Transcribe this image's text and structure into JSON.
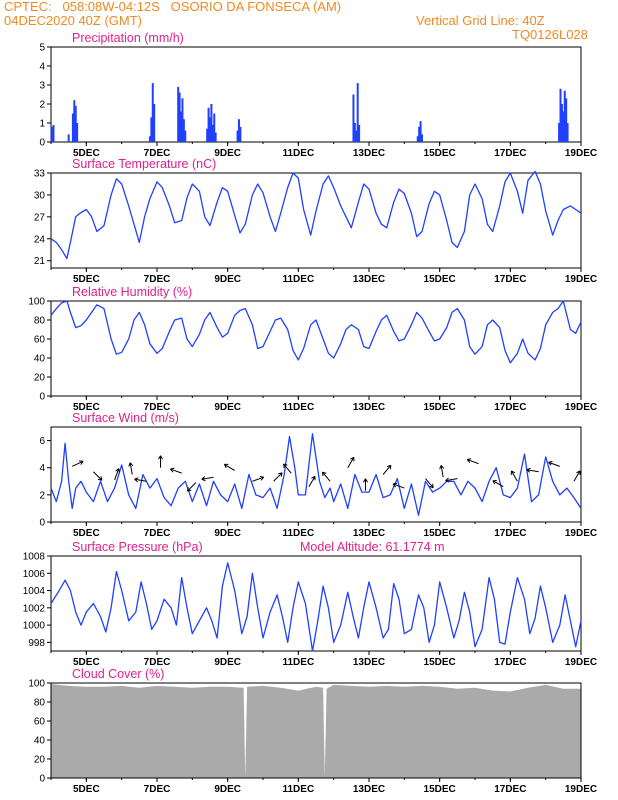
{
  "header": {
    "line1_left": "CPTEC:   058:08W-04:12S   OSORIO DA FONSECA (AM)",
    "line2_left": "04DEC2020 40Z (GMT)",
    "line2_right": "Vertical Grid Line: 40Z",
    "line3_right": "TQ0126L028"
  },
  "colors": {
    "header": "#f08a24",
    "titles": "#e0208c",
    "series": "#2040ff",
    "cloud": "#aaaaaa"
  },
  "x_tick_labels": [
    "5DEC",
    "7DEC",
    "9DEC",
    "11DEC",
    "13DEC",
    "15DEC",
    "17DEC",
    "19DEC"
  ],
  "chart_data": [
    {
      "type": "bar",
      "title": "Precipitation (mm/h)",
      "ylim": [
        0,
        5
      ],
      "yticks": [
        "0",
        "1",
        "2",
        "3",
        "4",
        "5"
      ],
      "x_range_days": [
        4.0,
        19.0
      ],
      "events": [
        {
          "day": 4.02,
          "value": 0.8
        },
        {
          "day": 4.07,
          "value": 0.9
        },
        {
          "day": 4.5,
          "value": 0.4
        },
        {
          "day": 4.62,
          "value": 1.5
        },
        {
          "day": 4.66,
          "value": 2.2
        },
        {
          "day": 4.7,
          "value": 1.9
        },
        {
          "day": 4.74,
          "value": 1.0
        },
        {
          "day": 6.8,
          "value": 0.3
        },
        {
          "day": 6.84,
          "value": 1.3
        },
        {
          "day": 6.88,
          "value": 3.1
        },
        {
          "day": 6.92,
          "value": 2.0
        },
        {
          "day": 7.6,
          "value": 2.9
        },
        {
          "day": 7.64,
          "value": 2.6
        },
        {
          "day": 7.68,
          "value": 1.6
        },
        {
          "day": 7.72,
          "value": 2.3
        },
        {
          "day": 7.76,
          "value": 1.2
        },
        {
          "day": 7.8,
          "value": 0.6
        },
        {
          "day": 8.42,
          "value": 0.7
        },
        {
          "day": 8.46,
          "value": 1.8
        },
        {
          "day": 8.5,
          "value": 1.3
        },
        {
          "day": 8.54,
          "value": 2.0
        },
        {
          "day": 8.58,
          "value": 0.9
        },
        {
          "day": 8.62,
          "value": 1.5
        },
        {
          "day": 8.66,
          "value": 0.5
        },
        {
          "day": 9.28,
          "value": 0.6
        },
        {
          "day": 9.32,
          "value": 1.2
        },
        {
          "day": 9.36,
          "value": 0.8
        },
        {
          "day": 12.56,
          "value": 2.5
        },
        {
          "day": 12.6,
          "value": 1.0
        },
        {
          "day": 12.64,
          "value": 0.6
        },
        {
          "day": 12.68,
          "value": 3.1
        },
        {
          "day": 12.72,
          "value": 0.9
        },
        {
          "day": 14.38,
          "value": 0.3
        },
        {
          "day": 14.42,
          "value": 0.8
        },
        {
          "day": 14.46,
          "value": 1.1
        },
        {
          "day": 14.5,
          "value": 0.4
        },
        {
          "day": 18.38,
          "value": 1.0
        },
        {
          "day": 18.42,
          "value": 2.8
        },
        {
          "day": 18.46,
          "value": 2.0
        },
        {
          "day": 18.5,
          "value": 1.6
        },
        {
          "day": 18.54,
          "value": 2.7
        },
        {
          "day": 18.58,
          "value": 2.3
        },
        {
          "day": 18.62,
          "value": 1.0
        }
      ]
    },
    {
      "type": "line",
      "title": "Surface Temperature (nC)",
      "ylim": [
        20,
        33
      ],
      "yticks": [
        "21",
        "24",
        "27",
        "30",
        "33"
      ],
      "x_range_days": [
        4.0,
        19.0
      ],
      "x": [
        4.0,
        4.15,
        4.3,
        4.45,
        4.55,
        4.7,
        4.85,
        5.0,
        5.15,
        5.3,
        5.5,
        5.7,
        5.85,
        6.0,
        6.2,
        6.35,
        6.5,
        6.65,
        6.8,
        7.0,
        7.15,
        7.35,
        7.5,
        7.7,
        7.85,
        8.0,
        8.2,
        8.35,
        8.5,
        8.7,
        8.85,
        9.0,
        9.2,
        9.35,
        9.5,
        9.7,
        9.85,
        10.0,
        10.2,
        10.35,
        10.5,
        10.7,
        10.85,
        11.0,
        11.15,
        11.35,
        11.5,
        11.7,
        11.85,
        12.0,
        12.2,
        12.35,
        12.5,
        12.7,
        12.85,
        13.0,
        13.2,
        13.35,
        13.5,
        13.7,
        13.85,
        14.0,
        14.2,
        14.35,
        14.5,
        14.7,
        14.85,
        15.0,
        15.2,
        15.35,
        15.5,
        15.7,
        15.85,
        16.0,
        16.2,
        16.35,
        16.5,
        16.7,
        16.85,
        17.0,
        17.2,
        17.35,
        17.5,
        17.7,
        17.85,
        18.0,
        18.2,
        18.35,
        18.5,
        18.7,
        18.85,
        19.0
      ],
      "values": [
        24.0,
        23.5,
        22.5,
        21.3,
        23.5,
        27.0,
        27.6,
        28.0,
        27.0,
        25.0,
        25.8,
        30.0,
        32.2,
        31.5,
        28.5,
        26.0,
        23.5,
        27.0,
        29.5,
        31.8,
        31.0,
        28.5,
        26.2,
        26.5,
        29.6,
        31.5,
        30.5,
        27.0,
        25.8,
        29.0,
        31.0,
        30.5,
        27.2,
        24.8,
        26.0,
        30.0,
        31.5,
        30.3,
        27.0,
        25.0,
        27.5,
        31.0,
        33.0,
        32.3,
        28.0,
        24.5,
        27.8,
        31.5,
        32.6,
        31.0,
        28.5,
        27.0,
        25.5,
        29.0,
        31.5,
        30.8,
        27.5,
        26.0,
        25.5,
        29.0,
        30.8,
        30.2,
        27.5,
        24.3,
        25.0,
        28.8,
        30.5,
        30.0,
        26.5,
        23.5,
        22.8,
        25.0,
        30.0,
        31.5,
        29.5,
        26.0,
        25.0,
        28.5,
        31.8,
        33.0,
        30.5,
        27.5,
        32.0,
        33.2,
        31.5,
        27.8,
        24.5,
        26.5,
        28.0,
        28.5,
        28.0,
        27.5
      ]
    },
    {
      "type": "line",
      "title": "Relative Humidity (%)",
      "ylim": [
        0,
        100
      ],
      "yticks": [
        "0",
        "20",
        "40",
        "60",
        "80",
        "100"
      ],
      "x_range_days": [
        4.0,
        19.0
      ],
      "x": [
        4.0,
        4.15,
        4.3,
        4.45,
        4.55,
        4.7,
        4.85,
        5.0,
        5.15,
        5.3,
        5.5,
        5.7,
        5.85,
        6.0,
        6.2,
        6.35,
        6.5,
        6.65,
        6.8,
        7.0,
        7.15,
        7.35,
        7.5,
        7.7,
        7.85,
        8.0,
        8.2,
        8.35,
        8.5,
        8.7,
        8.85,
        9.0,
        9.2,
        9.35,
        9.5,
        9.7,
        9.85,
        10.0,
        10.2,
        10.35,
        10.5,
        10.7,
        10.85,
        11.0,
        11.15,
        11.35,
        11.5,
        11.7,
        11.85,
        12.0,
        12.2,
        12.35,
        12.5,
        12.7,
        12.85,
        13.0,
        13.2,
        13.35,
        13.5,
        13.7,
        13.85,
        14.0,
        14.2,
        14.35,
        14.5,
        14.7,
        14.85,
        15.0,
        15.2,
        15.35,
        15.5,
        15.7,
        15.85,
        16.0,
        16.2,
        16.35,
        16.5,
        16.7,
        16.85,
        17.0,
        17.2,
        17.35,
        17.5,
        17.7,
        17.85,
        18.0,
        18.2,
        18.35,
        18.5,
        18.7,
        18.85,
        19.0
      ],
      "values": [
        85,
        92,
        98,
        100,
        88,
        72,
        74,
        80,
        88,
        96,
        92,
        60,
        44,
        46,
        60,
        80,
        88,
        75,
        55,
        45,
        50,
        68,
        80,
        82,
        60,
        52,
        65,
        80,
        88,
        72,
        62,
        66,
        85,
        90,
        92,
        75,
        50,
        52,
        68,
        80,
        82,
        70,
        48,
        38,
        50,
        75,
        80,
        60,
        45,
        40,
        55,
        70,
        75,
        70,
        52,
        50,
        68,
        80,
        85,
        68,
        58,
        60,
        75,
        88,
        82,
        68,
        58,
        60,
        72,
        88,
        92,
        80,
        52,
        44,
        52,
        75,
        80,
        72,
        48,
        35,
        45,
        60,
        45,
        38,
        50,
        75,
        88,
        92,
        100,
        70,
        66,
        78
      ]
    },
    {
      "type": "line",
      "title": "Surface Wind (m/s)",
      "ylim": [
        0,
        7
      ],
      "yticks": [
        "0",
        "2",
        "4",
        "6"
      ],
      "x_range_days": [
        4.0,
        19.0
      ],
      "x": [
        4.0,
        4.15,
        4.3,
        4.4,
        4.5,
        4.6,
        4.7,
        4.85,
        5.0,
        5.2,
        5.4,
        5.6,
        5.8,
        6.0,
        6.2,
        6.4,
        6.6,
        6.8,
        7.0,
        7.2,
        7.4,
        7.6,
        7.8,
        8.0,
        8.2,
        8.4,
        8.6,
        8.8,
        9.0,
        9.2,
        9.4,
        9.6,
        9.8,
        10.0,
        10.2,
        10.4,
        10.6,
        10.75,
        10.9,
        11.0,
        11.2,
        11.4,
        11.6,
        11.75,
        11.9,
        12.0,
        12.2,
        12.4,
        12.6,
        12.8,
        13.0,
        13.2,
        13.4,
        13.6,
        13.8,
        14.0,
        14.2,
        14.4,
        14.6,
        14.8,
        15.0,
        15.2,
        15.4,
        15.6,
        15.8,
        16.0,
        16.2,
        16.4,
        16.6,
        16.8,
        17.0,
        17.2,
        17.4,
        17.6,
        17.8,
        18.0,
        18.2,
        18.4,
        18.6,
        18.8,
        19.0
      ],
      "values": [
        2.5,
        1.5,
        3.0,
        5.8,
        3.0,
        1.0,
        2.5,
        3.0,
        2.2,
        1.5,
        3.0,
        1.5,
        2.5,
        4.2,
        2.0,
        1.0,
        3.5,
        2.5,
        3.2,
        1.8,
        1.2,
        2.5,
        3.0,
        1.5,
        2.8,
        1.2,
        3.0,
        2.0,
        1.5,
        2.8,
        1.0,
        3.5,
        2.0,
        1.8,
        2.5,
        1.0,
        3.5,
        6.3,
        4.0,
        2.0,
        2.0,
        6.5,
        3.0,
        1.8,
        2.5,
        1.5,
        2.8,
        1.0,
        3.5,
        2.2,
        2.2,
        3.5,
        1.8,
        2.0,
        3.2,
        1.0,
        2.8,
        0.5,
        3.0,
        2.2,
        2.5,
        3.0,
        3.0,
        2.0,
        3.0,
        2.5,
        1.5,
        3.0,
        4.0,
        2.0,
        1.8,
        2.5,
        5.0,
        1.5,
        2.0,
        4.8,
        3.0,
        2.0,
        2.5,
        1.8,
        1.0
      ]
    },
    {
      "type": "line",
      "title": "Surface Pressure (hPa)",
      "annotation": "Model Altitude: 61.1774 m",
      "ylim": [
        997,
        1008
      ],
      "yticks": [
        "998",
        "1000",
        "1002",
        "1004",
        "1006",
        "1008"
      ],
      "x_range_days": [
        4.0,
        19.0
      ],
      "x": [
        4.0,
        4.2,
        4.4,
        4.55,
        4.7,
        4.85,
        5.0,
        5.2,
        5.4,
        5.55,
        5.7,
        5.85,
        6.0,
        6.2,
        6.4,
        6.55,
        6.7,
        6.85,
        7.0,
        7.2,
        7.4,
        7.55,
        7.7,
        7.85,
        8.0,
        8.2,
        8.4,
        8.55,
        8.7,
        8.85,
        9.0,
        9.2,
        9.4,
        9.55,
        9.7,
        9.85,
        10.0,
        10.2,
        10.4,
        10.55,
        10.7,
        10.85,
        11.0,
        11.2,
        11.4,
        11.55,
        11.7,
        11.85,
        12.0,
        12.2,
        12.4,
        12.55,
        12.7,
        12.85,
        13.0,
        13.2,
        13.4,
        13.55,
        13.7,
        13.85,
        14.0,
        14.2,
        14.4,
        14.55,
        14.7,
        14.85,
        15.0,
        15.2,
        15.4,
        15.55,
        15.7,
        15.85,
        16.0,
        16.2,
        16.4,
        16.55,
        16.7,
        16.85,
        17.0,
        17.2,
        17.4,
        17.55,
        17.7,
        17.85,
        18.0,
        18.2,
        18.4,
        18.55,
        18.7,
        18.85,
        19.0
      ],
      "values": [
        1002.5,
        1003.8,
        1005.2,
        1004.0,
        1001.5,
        1000.0,
        1001.5,
        1002.5,
        1001.0,
        999.2,
        1002.0,
        1006.2,
        1004.0,
        1000.5,
        1001.5,
        1005.0,
        1002.5,
        999.5,
        1000.5,
        1003.0,
        1002.0,
        1000.0,
        1005.5,
        1002.0,
        999.0,
        1000.5,
        1002.0,
        1000.5,
        998.5,
        1004.5,
        1007.2,
        1004.0,
        999.0,
        1001.0,
        1006.0,
        1002.0,
        998.5,
        1001.5,
        1003.5,
        1001.0,
        998.0,
        1002.0,
        1005.0,
        1002.5,
        997.0,
        1000.5,
        1004.5,
        1002.0,
        998.0,
        1000.0,
        1003.8,
        1001.0,
        998.5,
        1002.0,
        1005.0,
        1002.0,
        998.5,
        999.5,
        1004.8,
        1003.0,
        999.0,
        999.5,
        1003.5,
        1002.0,
        998.0,
        1000.0,
        1005.0,
        1002.0,
        998.5,
        1000.5,
        1003.8,
        1001.5,
        997.5,
        999.5,
        1005.5,
        1003.0,
        998.0,
        997.8,
        1001.5,
        1005.5,
        1003.0,
        999.0,
        1000.8,
        1004.5,
        1002.0,
        998.0,
        1000.0,
        1003.5,
        1000.5,
        997.5,
        1000.5
      ]
    },
    {
      "type": "area",
      "title": "Cloud Cover (%)",
      "ylim": [
        0,
        100
      ],
      "yticks": [
        "0",
        "20",
        "40",
        "60",
        "80",
        "100"
      ],
      "x_range_days": [
        4.0,
        19.0
      ],
      "x": [
        4.0,
        4.5,
        5.0,
        5.5,
        6.0,
        6.5,
        7.0,
        7.5,
        8.0,
        8.5,
        9.0,
        9.45,
        9.5,
        9.55,
        10.0,
        10.5,
        11.0,
        11.5,
        11.7,
        11.75,
        11.8,
        12.0,
        12.5,
        13.0,
        13.5,
        14.0,
        14.5,
        15.0,
        15.5,
        16.0,
        16.5,
        17.0,
        17.5,
        18.0,
        18.5,
        19.0
      ],
      "values": [
        99,
        97,
        96,
        96,
        97,
        95,
        97,
        96,
        95,
        96,
        96,
        95,
        0,
        96,
        97,
        95,
        92,
        96,
        95,
        2,
        94,
        98,
        97,
        96,
        97,
        96,
        97,
        96,
        94,
        95,
        92,
        91,
        95,
        98,
        94,
        94
      ]
    }
  ]
}
